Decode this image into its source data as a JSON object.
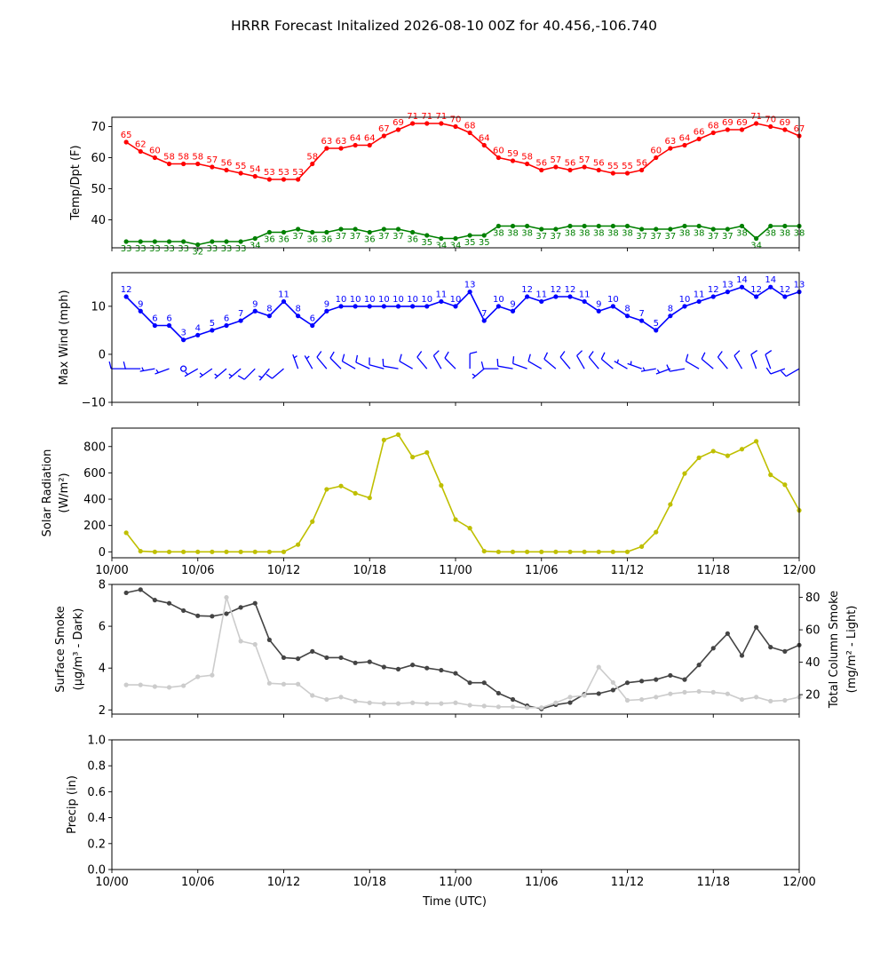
{
  "figure": {
    "title": "HRRR Forecast Initalized 2026-08-10 00Z for 40.456,-106.740",
    "xlabel": "Time (UTC)"
  },
  "chart_data": [
    {
      "type": "line",
      "ylabel": "Temp/Dpt (F)",
      "ylim": [
        31,
        73
      ],
      "yticks": [
        40,
        50,
        60,
        70
      ],
      "xticks_visible": false,
      "series": [
        {
          "color": "#ff0000",
          "point_labels": true,
          "values": [
            65,
            62,
            60,
            58,
            58,
            58,
            57,
            56,
            55,
            54,
            53,
            53,
            53,
            58,
            63,
            63,
            64,
            64,
            67,
            69,
            71,
            71,
            71,
            70,
            68,
            64,
            60,
            59,
            58,
            56,
            57,
            56,
            57,
            56,
            55,
            55,
            56,
            60,
            63,
            64,
            66,
            68,
            69,
            69,
            71,
            70,
            69,
            67
          ]
        },
        {
          "color": "#008000",
          "point_labels": true,
          "labels_below": true,
          "values": [
            33,
            33,
            33,
            33,
            33,
            32,
            33,
            33,
            33,
            34,
            36,
            36,
            37,
            36,
            36,
            37,
            37,
            36,
            37,
            37,
            36,
            35,
            34,
            34,
            35,
            35,
            38,
            38,
            38,
            37,
            37,
            38,
            38,
            38,
            38,
            38,
            37,
            37,
            37,
            38,
            38,
            37,
            37,
            38,
            34,
            38,
            38,
            38
          ]
        }
      ]
    },
    {
      "type": "line",
      "ylabel": "Max Wind (mph)",
      "ylim": [
        -10,
        17
      ],
      "yticks": [
        -10,
        0,
        10
      ],
      "xticks_visible": false,
      "series": [
        {
          "color": "#0000ff",
          "point_labels": true,
          "values": [
            12,
            9,
            6,
            6,
            3,
            4,
            5,
            6,
            7,
            9,
            8,
            11,
            8,
            6,
            9,
            10,
            10,
            10,
            10,
            10,
            10,
            10,
            11,
            10,
            13,
            7,
            10,
            9,
            12,
            11,
            12,
            12,
            11,
            9,
            10,
            8,
            7,
            5,
            8,
            10,
            11,
            12,
            13,
            14,
            12,
            14,
            12,
            13
          ]
        }
      ],
      "wind_barbs": {
        "color": "#0000ff",
        "row_y": -3,
        "from_direction_deg": [
          270,
          270,
          260,
          250,
          0,
          240,
          235,
          230,
          230,
          225,
          220,
          230,
          340,
          330,
          320,
          315,
          300,
          295,
          285,
          280,
          300,
          320,
          330,
          315,
          0,
          230,
          270,
          280,
          290,
          300,
          310,
          320,
          330,
          320,
          310,
          300,
          290,
          260,
          250,
          260,
          300,
          310,
          320,
          330,
          340,
          340,
          250,
          240
        ]
      }
    },
    {
      "type": "line",
      "ylabel": "Solar Radiation",
      "ylabel2": "(W/m²)",
      "ylim": [
        -45,
        940
      ],
      "yticks": [
        0,
        200,
        400,
        600,
        800
      ],
      "xticks_visible": true,
      "series": [
        {
          "color": "#bfbf00",
          "values": [
            145,
            5,
            0,
            0,
            0,
            0,
            0,
            0,
            0,
            0,
            0,
            0,
            55,
            230,
            475,
            500,
            445,
            410,
            850,
            890,
            720,
            755,
            505,
            245,
            180,
            5,
            0,
            0,
            0,
            0,
            0,
            0,
            0,
            0,
            0,
            0,
            40,
            150,
            360,
            595,
            715,
            765,
            730,
            780,
            840,
            585,
            510,
            315
          ]
        }
      ]
    },
    {
      "type": "line",
      "ylabel": "Surface Smoke",
      "ylabel2": "(μg/m³ - Dark)",
      "ylim": [
        1.8,
        8.0
      ],
      "yticks": [
        2,
        4,
        6,
        8
      ],
      "xticks_visible": false,
      "right_axis": {
        "ylabel": "Total Column Smoke",
        "ylabel2": "(mg/m² - Light)",
        "ylim": [
          8,
          88
        ],
        "yticks": [
          20,
          40,
          60,
          80
        ]
      },
      "series": [
        {
          "color": "#444444",
          "values": [
            7.6,
            7.75,
            7.25,
            7.1,
            6.75,
            6.5,
            6.48,
            6.6,
            6.9,
            7.1,
            5.35,
            4.5,
            4.45,
            4.8,
            4.5,
            4.5,
            4.25,
            4.3,
            4.05,
            3.95,
            4.15,
            4.0,
            3.9,
            3.75,
            3.3,
            3.3,
            2.8,
            2.5,
            2.2,
            2.05,
            2.25,
            2.35,
            2.75,
            2.78,
            2.95,
            3.3,
            3.38,
            3.45,
            3.65,
            3.45,
            4.15,
            4.95,
            5.65,
            4.6,
            5.95,
            5.0,
            4.8,
            5.1
          ]
        },
        {
          "color": "#cccccc",
          "axis": "right",
          "values": [
            26,
            26,
            25,
            24.5,
            25.5,
            31,
            32,
            80,
            53,
            51,
            27,
            26.5,
            26.5,
            19.5,
            17,
            18.5,
            16,
            15,
            14.5,
            14.5,
            15,
            14.5,
            14.5,
            15,
            13.5,
            13,
            12.5,
            12.5,
            12,
            12,
            15,
            18.5,
            19.5,
            37,
            27.5,
            16.5,
            17,
            18.5,
            20.5,
            21.5,
            22,
            21.5,
            20.5,
            17,
            18.5,
            16,
            16.5,
            18.5
          ]
        }
      ]
    },
    {
      "type": "line",
      "ylabel": "Precip (in)",
      "ylim": [
        0,
        1
      ],
      "yticks": [
        "0.0",
        "0.2",
        "0.4",
        "0.6",
        "0.8",
        "1.0"
      ],
      "xticks_visible": true,
      "series": []
    }
  ],
  "x_axis": {
    "range": [
      -1,
      47
    ],
    "point_count": 48,
    "ticks": [
      {
        "label": "10/00",
        "index": -1
      },
      {
        "label": "10/06",
        "index": 5
      },
      {
        "label": "10/12",
        "index": 11
      },
      {
        "label": "10/18",
        "index": 17
      },
      {
        "label": "11/00",
        "index": 23
      },
      {
        "label": "11/06",
        "index": 29
      },
      {
        "label": "11/12",
        "index": 35
      },
      {
        "label": "11/18",
        "index": 41
      },
      {
        "label": "12/00",
        "index": 47
      }
    ]
  }
}
